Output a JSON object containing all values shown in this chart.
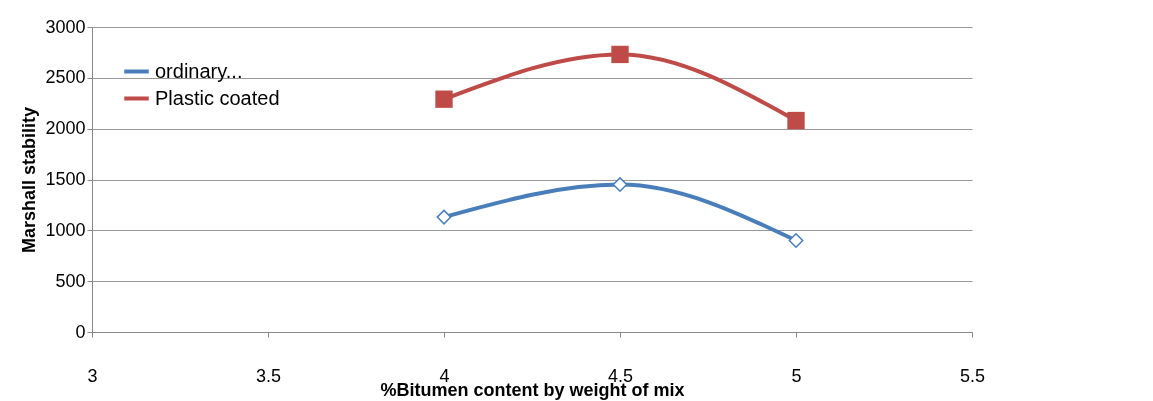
{
  "chart_data": {
    "type": "line",
    "xlabel": "%Bitumen content by weight of mix",
    "ylabel": "Marshall stability",
    "x": [
      4,
      4.5,
      5
    ],
    "series": [
      {
        "name": "ordinary...",
        "color": "#4a7ebb",
        "values": [
          1130,
          1450,
          900
        ],
        "marker": "diamond"
      },
      {
        "name": "Plastic coated",
        "color": "#be4b48",
        "values": [
          2290,
          2730,
          2080
        ],
        "marker": "square"
      }
    ],
    "xlim": [
      3,
      5.5
    ],
    "xticks": [
      3,
      3.5,
      4,
      4.5,
      5,
      5.5
    ],
    "ylim": [
      0,
      3000
    ],
    "yticks": [
      0,
      500,
      1000,
      1500,
      2000,
      2500,
      3000
    ],
    "grid": "y",
    "legend": "top left"
  }
}
